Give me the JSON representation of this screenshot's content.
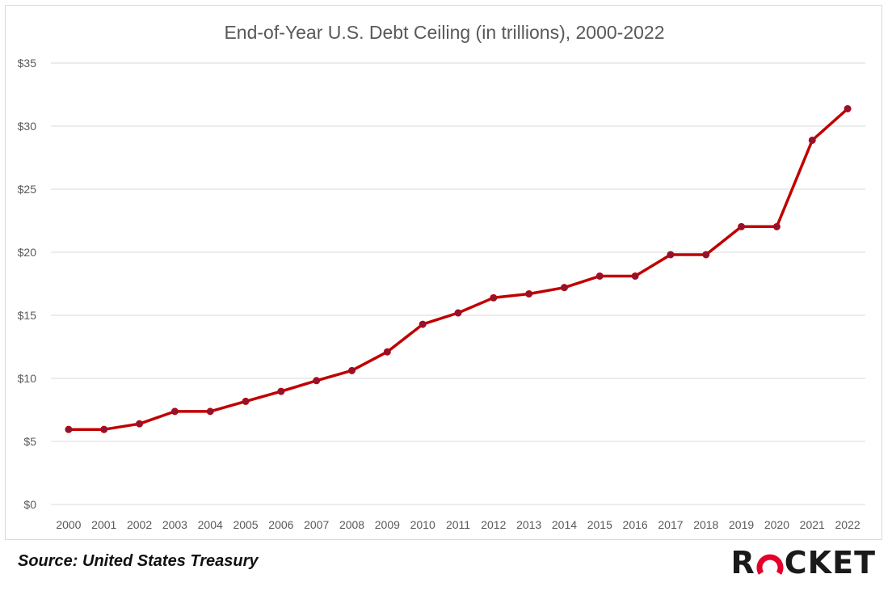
{
  "chart_data": {
    "type": "line",
    "title": "End-of-Year U.S. Debt Ceiling (in trillions), 2000-2022",
    "xlabel": "",
    "ylabel": "",
    "categories": [
      "2000",
      "2001",
      "2002",
      "2003",
      "2004",
      "2005",
      "2006",
      "2007",
      "2008",
      "2009",
      "2010",
      "2011",
      "2012",
      "2013",
      "2014",
      "2015",
      "2016",
      "2017",
      "2018",
      "2019",
      "2020",
      "2021",
      "2022"
    ],
    "series": [
      {
        "values": [
          5.95,
          5.95,
          6.4,
          7.38,
          7.38,
          8.18,
          8.97,
          9.82,
          10.62,
          12.1,
          14.29,
          15.19,
          16.39,
          16.7,
          17.2,
          18.11,
          18.11,
          19.81,
          19.81,
          22.03,
          22.03,
          28.88,
          31.38
        ]
      }
    ],
    "yticks": [
      "$0",
      "$5",
      "$10",
      "$15",
      "$20",
      "$25",
      "$30",
      "$35"
    ],
    "ylim": [
      0,
      35
    ],
    "grid": true,
    "legend": "none",
    "colors": {
      "line": "#c00000",
      "marker": "#8b1538",
      "grid": "#d9d9d9",
      "axis_text": "#595959",
      "title_text": "#595959"
    }
  },
  "footer": {
    "source": "Source: United States Treasury",
    "logo_text": "ROCKET"
  }
}
